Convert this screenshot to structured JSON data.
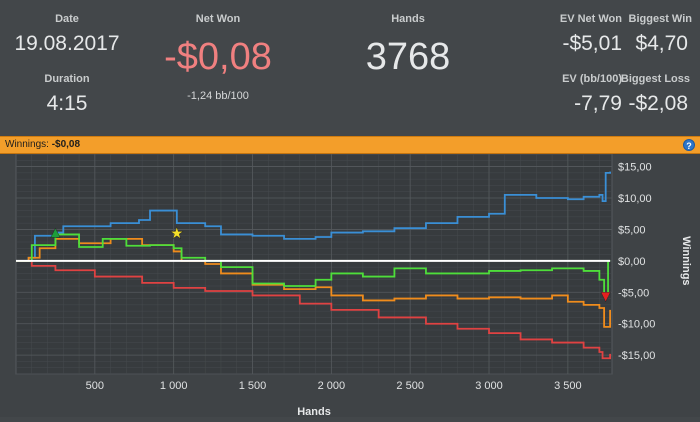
{
  "stats": {
    "date": {
      "label": "Date",
      "value": "19.08.2017"
    },
    "duration": {
      "label": "Duration",
      "value": "4:15"
    },
    "net_won": {
      "label": "Net Won",
      "value": "-$0,08",
      "sub": "-1,24 bb/100",
      "color": "#f08080"
    },
    "hands": {
      "label": "Hands",
      "value": "3768"
    },
    "ev_net_won": {
      "label": "EV Net Won",
      "value": "-$5,01"
    },
    "biggest_win": {
      "label": "Biggest Win",
      "value": "$4,70"
    },
    "ev_bb100": {
      "label": "EV (bb/100)",
      "value": "-7,79"
    },
    "biggest_loss": {
      "label": "Biggest Loss",
      "value": "-$2,08"
    }
  },
  "winnings_bar": {
    "label": "Winnings:",
    "value": "-$0,08",
    "help_icon": "help-icon",
    "help_glyph": "?"
  },
  "chart_data": {
    "type": "line",
    "xlabel": "Hands",
    "ylabel": "Winnings",
    "xlim": [
      0,
      3780
    ],
    "ylim": [
      -18,
      17
    ],
    "x_ticks": [
      500,
      1000,
      1500,
      2000,
      2500,
      3000,
      3500
    ],
    "x_tick_labels": [
      "500",
      "1 000",
      "1 500",
      "2 000",
      "2 500",
      "3 000",
      "3 500"
    ],
    "y_ticks": [
      15,
      10,
      5,
      0,
      -5,
      -10,
      -15
    ],
    "y_tick_labels": [
      "$15,00",
      "$10,00",
      "$5,00",
      "$0,00",
      "-$5,00",
      "-$10,00",
      "-$15,00"
    ],
    "grid": true,
    "series": [
      {
        "color": "#3a8fd6",
        "points": [
          [
            0,
            0
          ],
          [
            80,
            0.5
          ],
          [
            120,
            4
          ],
          [
            250,
            4.5
          ],
          [
            300,
            5.5
          ],
          [
            600,
            6
          ],
          [
            780,
            6.5
          ],
          [
            850,
            8
          ],
          [
            1000,
            8
          ],
          [
            1020,
            6
          ],
          [
            1200,
            5.5
          ],
          [
            1300,
            4.2
          ],
          [
            1500,
            4
          ],
          [
            1700,
            3.5
          ],
          [
            1900,
            3.8
          ],
          [
            2000,
            4.5
          ],
          [
            2200,
            4.7
          ],
          [
            2400,
            5.2
          ],
          [
            2600,
            6
          ],
          [
            2800,
            7
          ],
          [
            3000,
            7.5
          ],
          [
            3100,
            10.5
          ],
          [
            3300,
            10
          ],
          [
            3500,
            9.8
          ],
          [
            3600,
            10.2
          ],
          [
            3700,
            10.5
          ],
          [
            3720,
            9.5
          ],
          [
            3740,
            14
          ],
          [
            3768,
            14.2
          ]
        ]
      },
      {
        "color": "#f08c1c",
        "points": [
          [
            0,
            0
          ],
          [
            80,
            0.5
          ],
          [
            150,
            2
          ],
          [
            250,
            3.5
          ],
          [
            400,
            2.8
          ],
          [
            600,
            3.5
          ],
          [
            800,
            2.5
          ],
          [
            1000,
            1.5
          ],
          [
            1050,
            0
          ],
          [
            1200,
            -0.5
          ],
          [
            1300,
            -2
          ],
          [
            1500,
            -3.8
          ],
          [
            1700,
            -4.5
          ],
          [
            1900,
            -4.2
          ],
          [
            2000,
            -5.5
          ],
          [
            2200,
            -6.3
          ],
          [
            2400,
            -6
          ],
          [
            2600,
            -5.5
          ],
          [
            2800,
            -6
          ],
          [
            3000,
            -5.8
          ],
          [
            3200,
            -6
          ],
          [
            3400,
            -5.5
          ],
          [
            3500,
            -6.5
          ],
          [
            3600,
            -7
          ],
          [
            3700,
            -7.5
          ],
          [
            3730,
            -10.5
          ],
          [
            3768,
            -7.8
          ]
        ]
      },
      {
        "color": "#e04242",
        "points": [
          [
            0,
            0
          ],
          [
            100,
            -0.8
          ],
          [
            250,
            -1.5
          ],
          [
            500,
            -2.5
          ],
          [
            800,
            -3.5
          ],
          [
            1000,
            -4.3
          ],
          [
            1200,
            -4.8
          ],
          [
            1500,
            -5.5
          ],
          [
            1800,
            -6.8
          ],
          [
            2000,
            -7.8
          ],
          [
            2300,
            -9
          ],
          [
            2600,
            -10
          ],
          [
            2800,
            -10.8
          ],
          [
            3000,
            -11.5
          ],
          [
            3200,
            -12.5
          ],
          [
            3400,
            -13
          ],
          [
            3600,
            -13.8
          ],
          [
            3700,
            -14.5
          ],
          [
            3720,
            -15.5
          ],
          [
            3768,
            -14.8
          ]
        ]
      },
      {
        "color": "#4ede3a",
        "points": [
          [
            0,
            0
          ],
          [
            100,
            2.5
          ],
          [
            250,
            4.2
          ],
          [
            400,
            2.2
          ],
          [
            550,
            3.5
          ],
          [
            700,
            2.4
          ],
          [
            850,
            2.5
          ],
          [
            1000,
            2
          ],
          [
            1050,
            0.5
          ],
          [
            1200,
            0
          ],
          [
            1300,
            -1
          ],
          [
            1500,
            -3.6
          ],
          [
            1700,
            -4
          ],
          [
            1900,
            -3
          ],
          [
            2000,
            -2
          ],
          [
            2200,
            -2.5
          ],
          [
            2400,
            -1.2
          ],
          [
            2600,
            -2
          ],
          [
            2800,
            -2
          ],
          [
            3000,
            -1.6
          ],
          [
            3200,
            -1.5
          ],
          [
            3400,
            -1.2
          ],
          [
            3600,
            -1.6
          ],
          [
            3700,
            -3
          ],
          [
            3730,
            -5.5
          ],
          [
            3755,
            0
          ],
          [
            3768,
            0
          ]
        ]
      },
      {
        "color": "#ffffff",
        "points": [
          [
            0,
            0
          ],
          [
            3768,
            0
          ]
        ]
      }
    ],
    "markers": [
      {
        "name": "biggest-win-marker",
        "glyph": "▲",
        "color": "#1d9e3a",
        "x": 250,
        "y": 4.7
      },
      {
        "name": "star-marker",
        "glyph": "★",
        "color": "#f5e02a",
        "x": 1020,
        "y": 4.5
      },
      {
        "name": "biggest-loss-marker",
        "glyph": "▼",
        "color": "#e42020",
        "x": 3740,
        "y": -5.5
      }
    ]
  }
}
